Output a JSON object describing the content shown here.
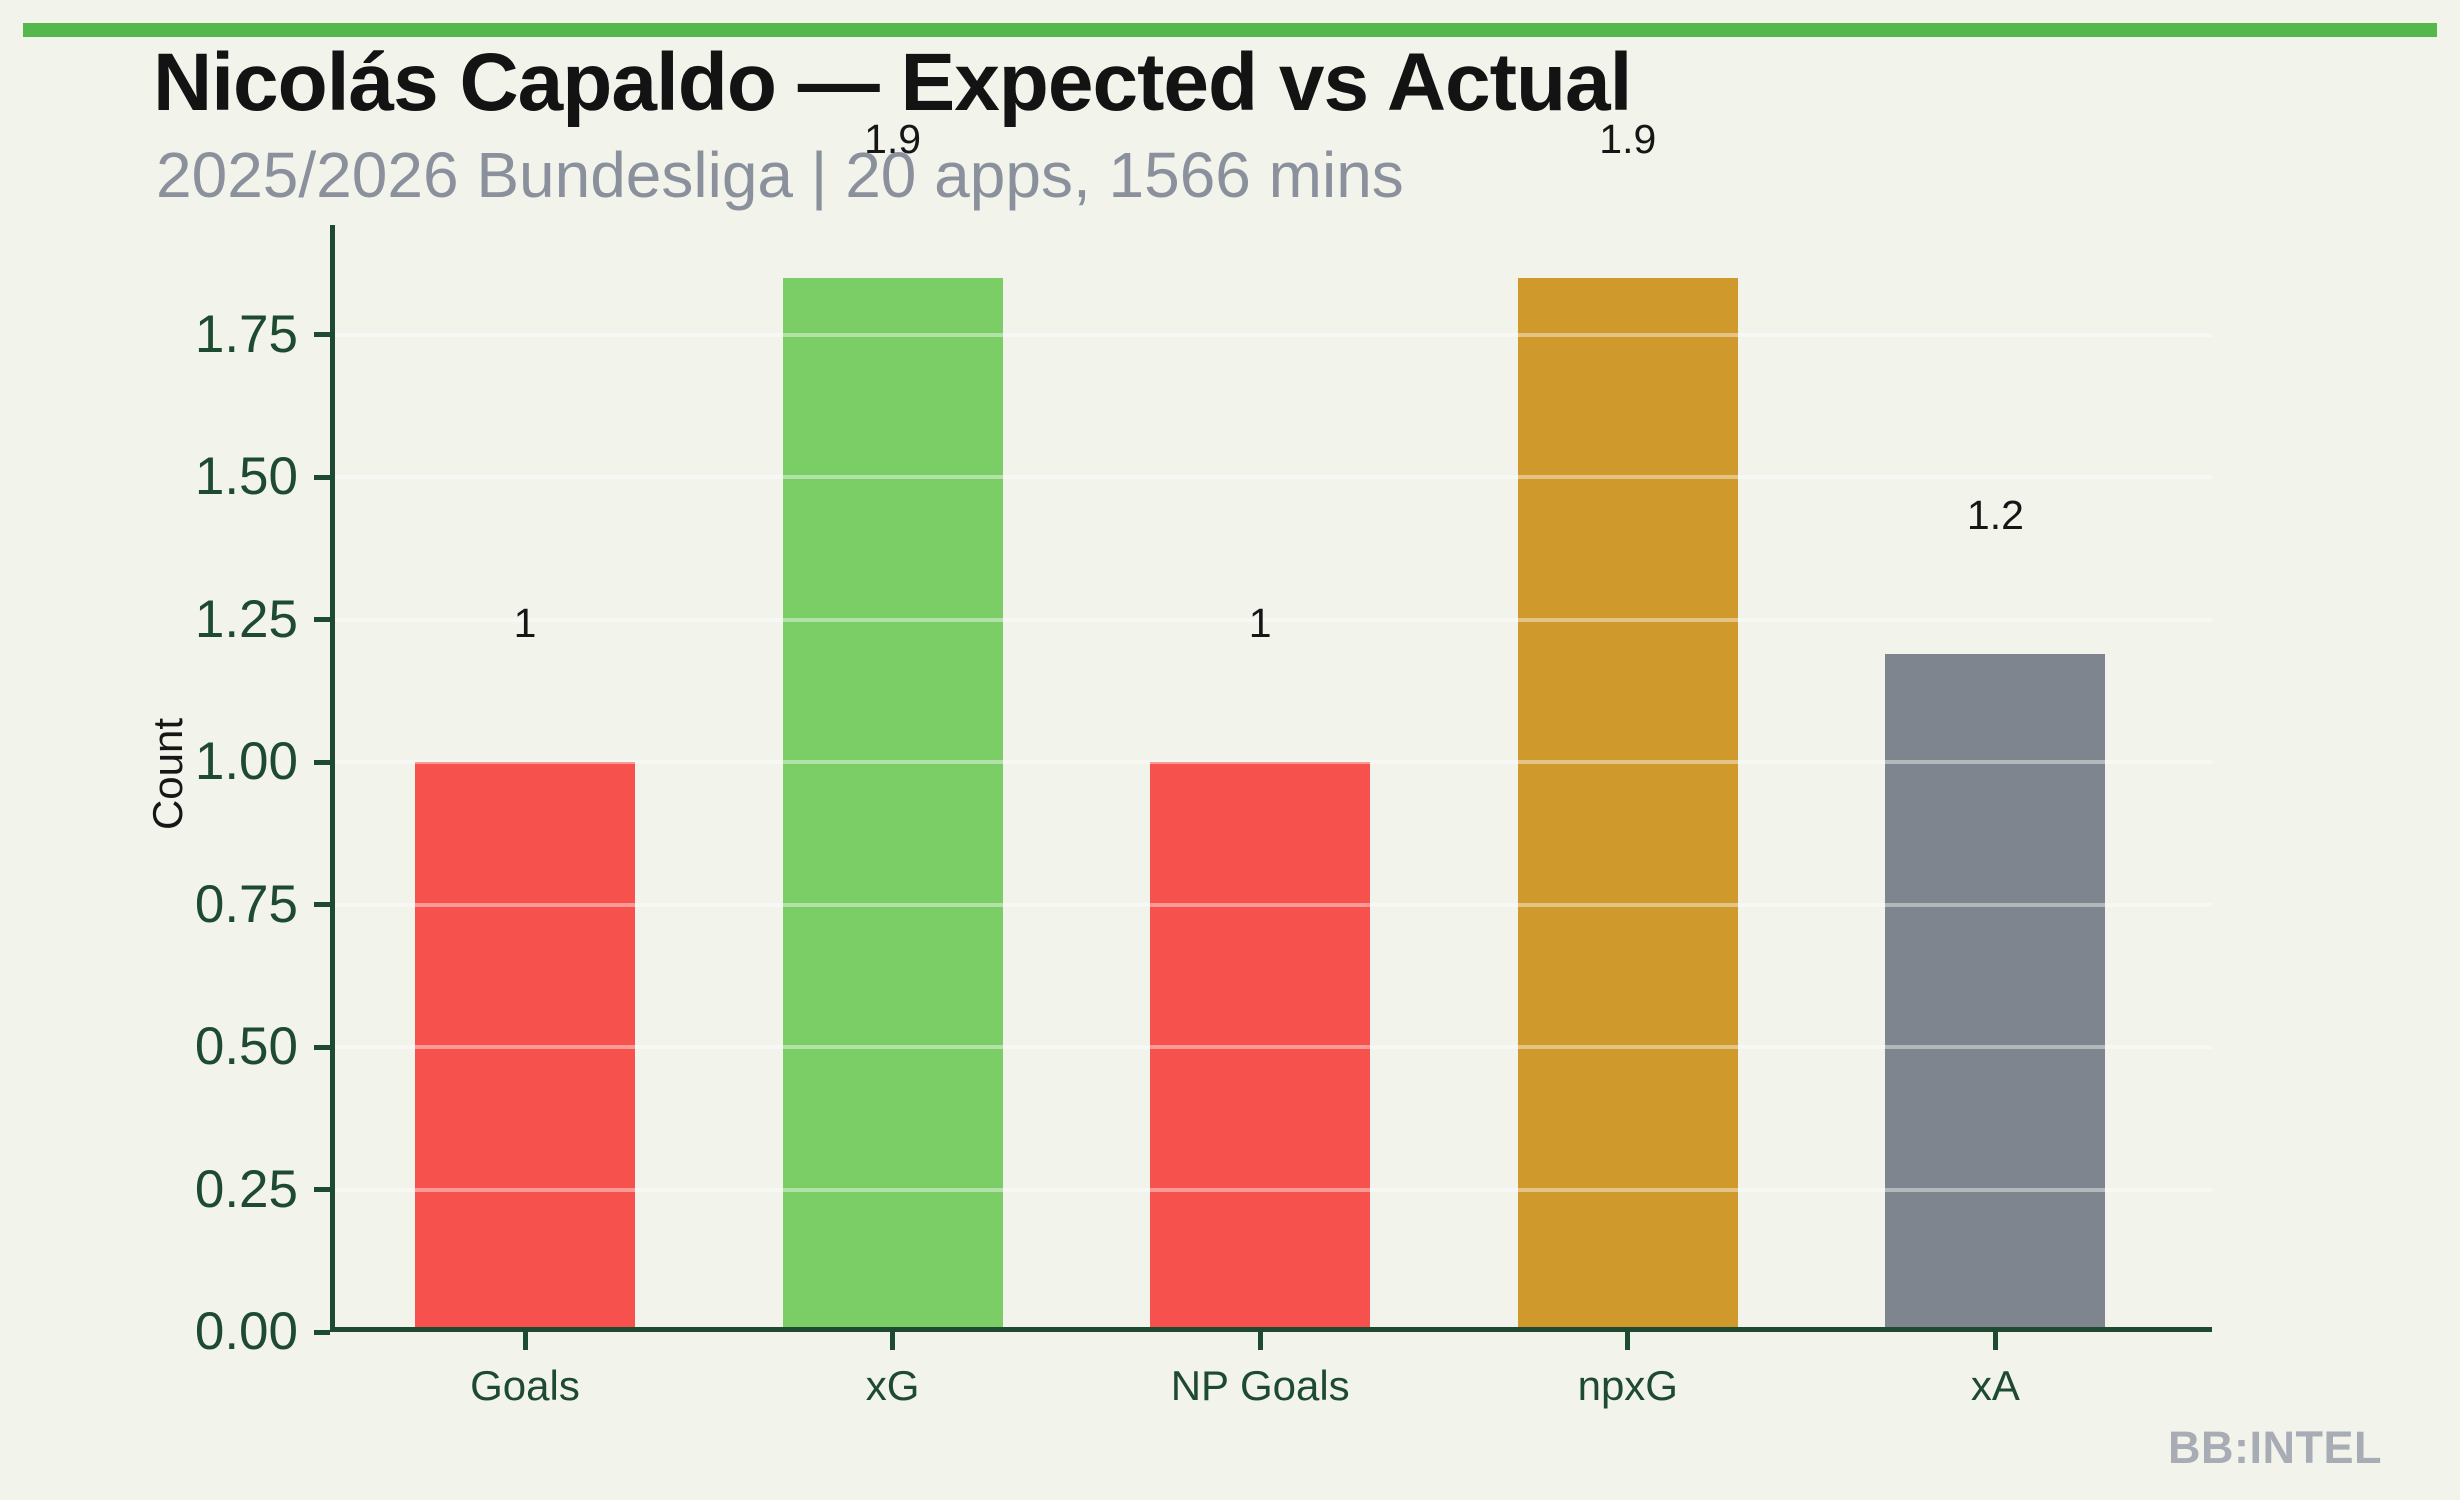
{
  "page": {
    "title": "Nicolás Capaldo — Expected vs Actual",
    "subtitle": "2025/2026 Bundesliga | 20 apps, 1566 mins",
    "watermark": "BB:INTEL",
    "colors": {
      "background": "#F2F3EB",
      "accent_strip": "#55B84C",
      "axis_dark_green": "#1D4A30",
      "title_text": "#131313",
      "subtitle_text": "#8A919C",
      "value_label_text": "#161616",
      "watermark_text": "#A8ADB5",
      "gridline": "rgba(255,255,255,0.42)"
    }
  },
  "chart_data": {
    "type": "bar",
    "title": "Nicolás Capaldo — Expected vs Actual",
    "subtitle": "2025/2026 Bundesliga | 20 apps, 1566 mins",
    "xlabel": "",
    "ylabel": "Count",
    "categories": [
      "Goals",
      "xG",
      "NP Goals",
      "npxG",
      "xA"
    ],
    "values": [
      1,
      1.9,
      1,
      1.9,
      1.2
    ],
    "bar_labels": [
      "1",
      "1.9",
      "1",
      "1.9",
      "1.2"
    ],
    "drawn_values": [
      1.0,
      1.85,
      1.0,
      1.85,
      1.19
    ],
    "bar_colors": [
      "#F7514D",
      "#7BCD65",
      "#F7514D",
      "#D0992B",
      "#7E858E"
    ],
    "yticks": [
      "0.00",
      "0.25",
      "0.50",
      "0.75",
      "1.00",
      "1.25",
      "1.50",
      "1.75"
    ],
    "ytick_values": [
      0,
      0.25,
      0.5,
      0.75,
      1,
      1.25,
      1.5,
      1.75
    ],
    "ylim": [
      0,
      1.94
    ],
    "grid": "horizontal-only",
    "legend": "none"
  }
}
